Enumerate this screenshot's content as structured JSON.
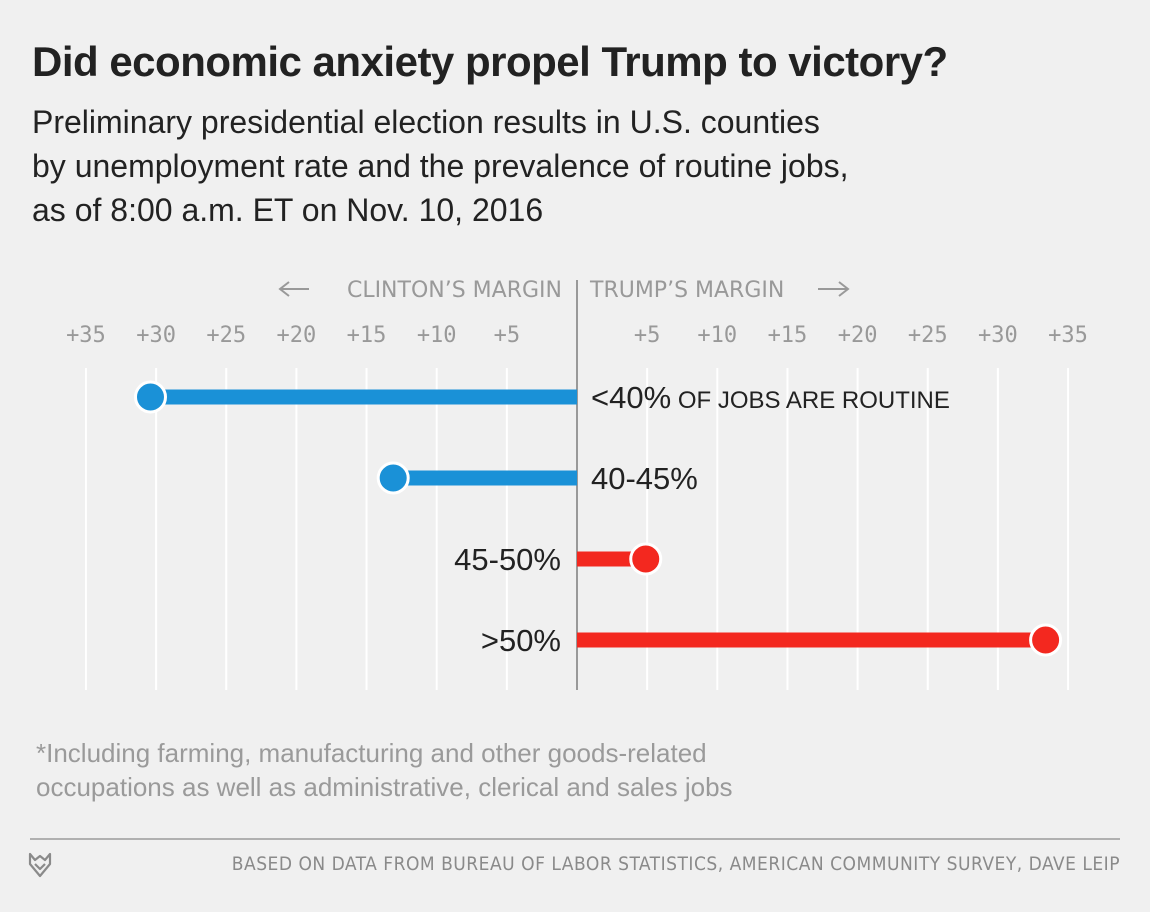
{
  "title": "Did economic anxiety propel Trump to victory?",
  "subtitle_lines": [
    "Preliminary presidential election results in U.S. counties",
    "by unemployment rate and the prevalence of routine jobs,",
    "as of 8:00 a.m. ET on Nov. 10, 2016"
  ],
  "footnote_lines": [
    "*Including farming, manufacturing and other goods-related",
    "occupations as well as administrative, clerical and sales jobs"
  ],
  "source": "BASED ON DATA FROM BUREAU OF LABOR STATISTICS, AMERICAN COMMUNITY SURVEY, DAVE LEIP",
  "colors": {
    "clinton": "#1a91d7",
    "trump": "#f3281f",
    "axis_text": "#999999",
    "grid": "#ffffff",
    "zero_line": "#999999",
    "background": "#f0f0f0"
  },
  "chart_data": {
    "type": "dot-bar",
    "left_header": "CLINTON’S MARGIN",
    "right_header": "TRUMP’S MARGIN",
    "xlim": [
      -35,
      35
    ],
    "tick_values": [
      -35,
      -30,
      -25,
      -20,
      -15,
      -10,
      -5,
      5,
      10,
      15,
      20,
      25,
      30,
      35
    ],
    "tick_labels": [
      "+35",
      "+30",
      "+25",
      "+20",
      "+15",
      "+10",
      "+5",
      "+5",
      "+10",
      "+15",
      "+20",
      "+25",
      "+30",
      "+35"
    ],
    "grid": true,
    "categories": [
      {
        "label": "<40%",
        "label_suffix": " OF JOBS ARE ROUTINE",
        "value": -30.4,
        "party": "clinton"
      },
      {
        "label": "40-45%",
        "label_suffix": "",
        "value": -13.1,
        "party": "clinton"
      },
      {
        "label": "45-50%",
        "label_suffix": "",
        "value": 4.9,
        "party": "trump"
      },
      {
        "label": ">50%",
        "label_suffix": "",
        "value": 33.4,
        "party": "trump"
      }
    ]
  }
}
